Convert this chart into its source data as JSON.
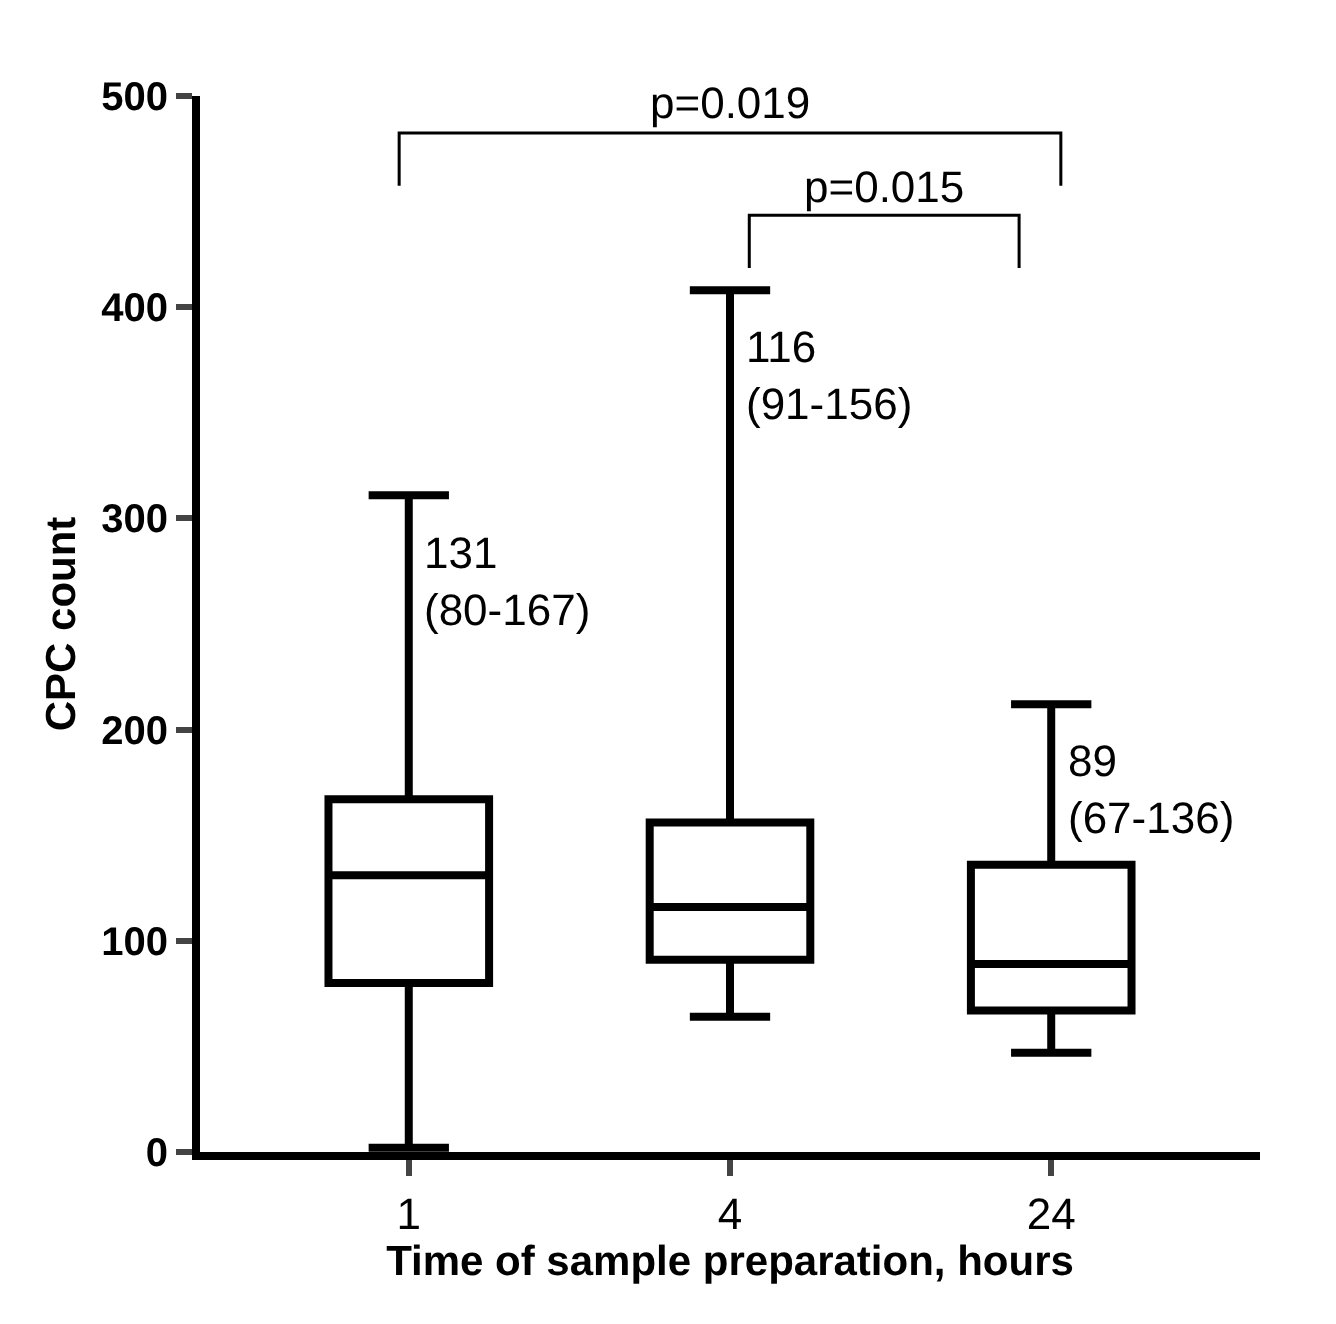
{
  "chart_data": {
    "type": "box",
    "xlabel": "Time of sample preparation, hours",
    "ylabel": "CPC count",
    "categories": [
      "1",
      "4",
      "24"
    ],
    "boxes": [
      {
        "low": 2,
        "q1": 80,
        "median": 131,
        "q3": 167,
        "high": 311
      },
      {
        "low": 64,
        "q1": 91,
        "median": 116,
        "q3": 156,
        "high": 408
      },
      {
        "low": 47,
        "q1": 67,
        "median": 89,
        "q3": 136,
        "high": 212
      }
    ],
    "color": "#000000",
    "ylim": [
      0,
      500
    ],
    "yticks": [
      0,
      100,
      200,
      300,
      400,
      500
    ],
    "grid": false,
    "legend": false,
    "annotations": [
      {
        "text": "131\n(80-167)",
        "x": "1",
        "y": 311
      },
      {
        "text": "116\n(91-156)",
        "x": "4",
        "y": 408
      },
      {
        "text": "89\n(67-136)",
        "x": "24",
        "y": 212
      },
      "p=0.019",
      "p=0.015"
    ]
  }
}
